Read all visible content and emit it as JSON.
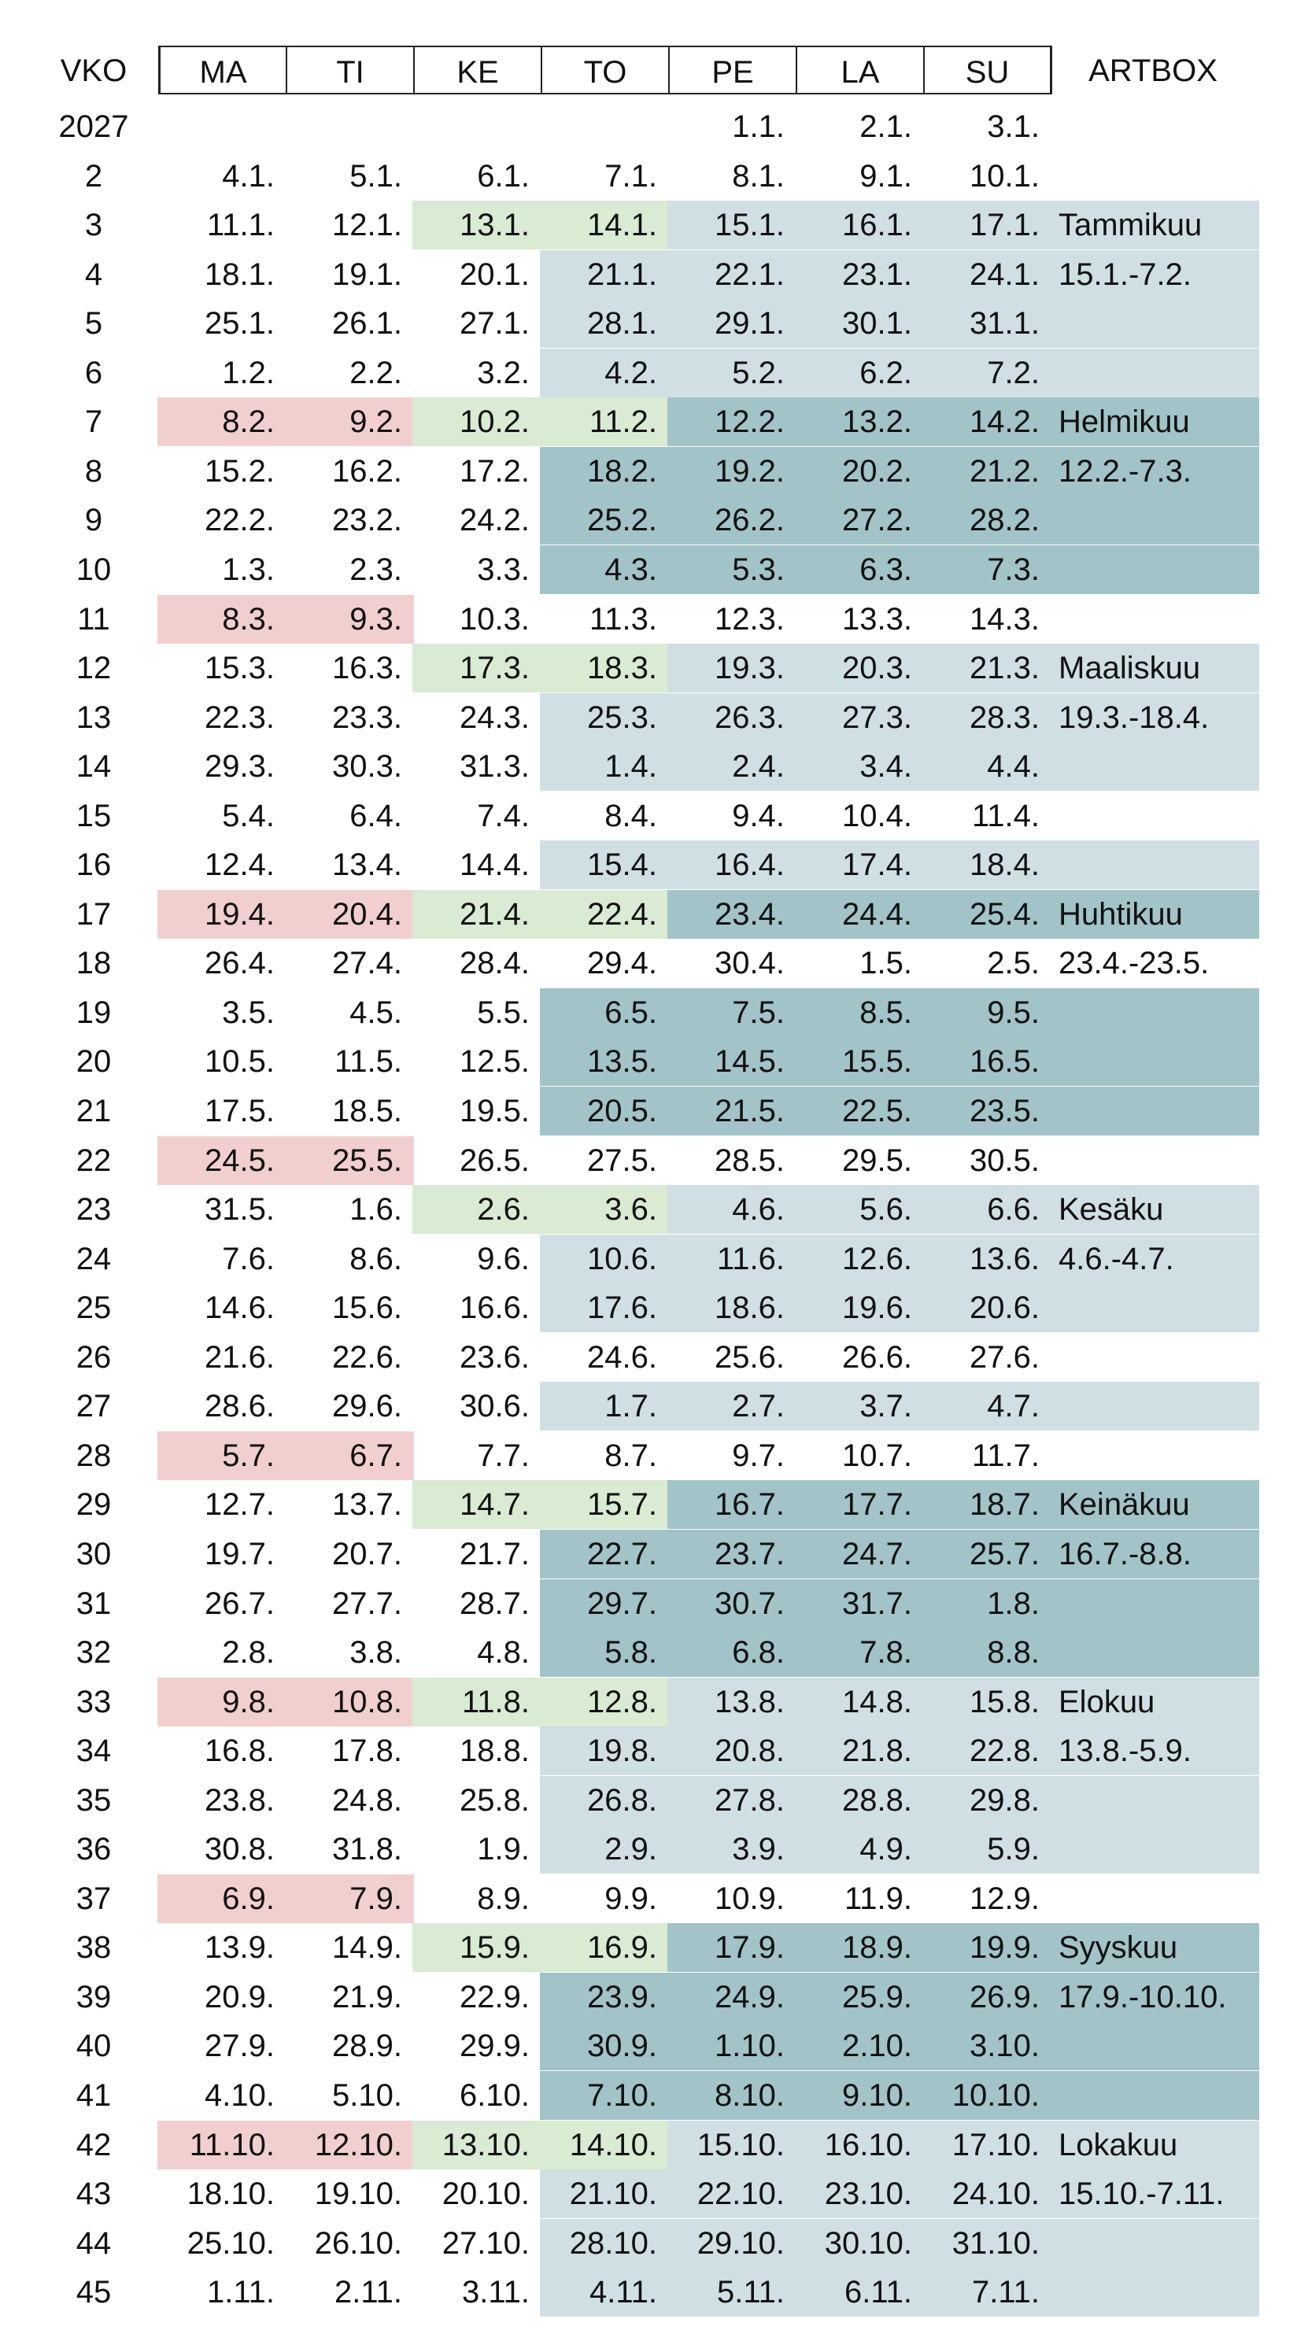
{
  "header": {
    "week_label": "VKO",
    "days": [
      "MA",
      "TI",
      "KE",
      "TO",
      "PE",
      "LA",
      "SU"
    ],
    "notes_label": "ARTBOX"
  },
  "colors": {
    "pink": "#f2cfcf",
    "green": "#d9ebd3",
    "light_blue": "#d0dfe3",
    "dark_blue": "#a2c3c8"
  },
  "rows": [
    {
      "week": "2027",
      "days": [
        "",
        "",
        "",
        "",
        "1.1.",
        "2.1.",
        "3.1."
      ],
      "note": "",
      "colors": [
        "",
        "",
        "",
        "",
        "",
        "",
        ""
      ],
      "note_color": ""
    },
    {
      "week": "2",
      "days": [
        "4.1.",
        "5.1.",
        "6.1.",
        "7.1.",
        "8.1.",
        "9.1.",
        "10.1."
      ],
      "note": "",
      "colors": [
        "",
        "",
        "",
        "",
        "",
        "",
        ""
      ],
      "note_color": ""
    },
    {
      "week": "3",
      "days": [
        "11.1.",
        "12.1.",
        "13.1.",
        "14.1.",
        "15.1.",
        "16.1.",
        "17.1."
      ],
      "note": "Tammikuu",
      "colors": [
        "",
        "",
        "green",
        "green",
        "light_blue",
        "light_blue",
        "light_blue"
      ],
      "note_color": "light_blue"
    },
    {
      "week": "4",
      "days": [
        "18.1.",
        "19.1.",
        "20.1.",
        "21.1.",
        "22.1.",
        "23.1.",
        "24.1."
      ],
      "note": "15.1.-7.2.",
      "colors": [
        "",
        "",
        "",
        "light_blue",
        "light_blue",
        "light_blue",
        "light_blue"
      ],
      "note_color": "light_blue"
    },
    {
      "week": "5",
      "days": [
        "25.1.",
        "26.1.",
        "27.1.",
        "28.1.",
        "29.1.",
        "30.1.",
        "31.1."
      ],
      "note": "",
      "colors": [
        "",
        "",
        "",
        "light_blue",
        "light_blue",
        "light_blue",
        "light_blue"
      ],
      "note_color": "light_blue"
    },
    {
      "week": "6",
      "days": [
        "1.2.",
        "2.2.",
        "3.2.",
        "4.2.",
        "5.2.",
        "6.2.",
        "7.2."
      ],
      "note": "",
      "colors": [
        "",
        "",
        "",
        "light_blue",
        "light_blue",
        "light_blue",
        "light_blue"
      ],
      "note_color": "light_blue"
    },
    {
      "week": "7",
      "days": [
        "8.2.",
        "9.2.",
        "10.2.",
        "11.2.",
        "12.2.",
        "13.2.",
        "14.2."
      ],
      "note": "Helmikuu",
      "colors": [
        "pink",
        "pink",
        "green",
        "green",
        "dark_blue",
        "dark_blue",
        "dark_blue"
      ],
      "note_color": "dark_blue"
    },
    {
      "week": "8",
      "days": [
        "15.2.",
        "16.2.",
        "17.2.",
        "18.2.",
        "19.2.",
        "20.2.",
        "21.2."
      ],
      "note": "12.2.-7.3.",
      "colors": [
        "",
        "",
        "",
        "dark_blue",
        "dark_blue",
        "dark_blue",
        "dark_blue"
      ],
      "note_color": "dark_blue"
    },
    {
      "week": "9",
      "days": [
        "22.2.",
        "23.2.",
        "24.2.",
        "25.2.",
        "26.2.",
        "27.2.",
        "28.2."
      ],
      "note": "",
      "colors": [
        "",
        "",
        "",
        "dark_blue",
        "dark_blue",
        "dark_blue",
        "dark_blue"
      ],
      "note_color": "dark_blue"
    },
    {
      "week": "10",
      "days": [
        "1.3.",
        "2.3.",
        "3.3.",
        "4.3.",
        "5.3.",
        "6.3.",
        "7.3."
      ],
      "note": "",
      "colors": [
        "",
        "",
        "",
        "dark_blue",
        "dark_blue",
        "dark_blue",
        "dark_blue"
      ],
      "note_color": "dark_blue"
    },
    {
      "week": "11",
      "days": [
        "8.3.",
        "9.3.",
        "10.3.",
        "11.3.",
        "12.3.",
        "13.3.",
        "14.3."
      ],
      "note": "",
      "colors": [
        "pink",
        "pink",
        "",
        "",
        "",
        "",
        ""
      ],
      "note_color": ""
    },
    {
      "week": "12",
      "days": [
        "15.3.",
        "16.3.",
        "17.3.",
        "18.3.",
        "19.3.",
        "20.3.",
        "21.3."
      ],
      "note": "Maaliskuu",
      "colors": [
        "",
        "",
        "green",
        "green",
        "light_blue",
        "light_blue",
        "light_blue"
      ],
      "note_color": "light_blue"
    },
    {
      "week": "13",
      "days": [
        "22.3.",
        "23.3.",
        "24.3.",
        "25.3.",
        "26.3.",
        "27.3.",
        "28.3."
      ],
      "note": "19.3.-18.4.",
      "colors": [
        "",
        "",
        "",
        "light_blue",
        "light_blue",
        "light_blue",
        "light_blue"
      ],
      "note_color": "light_blue"
    },
    {
      "week": "14",
      "days": [
        "29.3.",
        "30.3.",
        "31.3.",
        "1.4.",
        "2.4.",
        "3.4.",
        "4.4."
      ],
      "note": "",
      "colors": [
        "",
        "",
        "",
        "light_blue",
        "light_blue",
        "light_blue",
        "light_blue"
      ],
      "note_color": "light_blue"
    },
    {
      "week": "15",
      "days": [
        "5.4.",
        "6.4.",
        "7.4.",
        "8.4.",
        "9.4.",
        "10.4.",
        "11.4."
      ],
      "note": "",
      "colors": [
        "",
        "",
        "",
        "",
        "",
        "",
        ""
      ],
      "note_color": ""
    },
    {
      "week": "16",
      "days": [
        "12.4.",
        "13.4.",
        "14.4.",
        "15.4.",
        "16.4.",
        "17.4.",
        "18.4."
      ],
      "note": "",
      "colors": [
        "",
        "",
        "",
        "light_blue",
        "light_blue",
        "light_blue",
        "light_blue"
      ],
      "note_color": "light_blue"
    },
    {
      "week": "17",
      "days": [
        "19.4.",
        "20.4.",
        "21.4.",
        "22.4.",
        "23.4.",
        "24.4.",
        "25.4."
      ],
      "note": "Huhtikuu",
      "colors": [
        "pink",
        "pink",
        "green",
        "green",
        "dark_blue",
        "dark_blue",
        "dark_blue"
      ],
      "note_color": "dark_blue"
    },
    {
      "week": "18",
      "days": [
        "26.4.",
        "27.4.",
        "28.4.",
        "29.4.",
        "30.4.",
        "1.5.",
        "2.5."
      ],
      "note": "23.4.-23.5.",
      "colors": [
        "",
        "",
        "",
        "",
        "",
        "",
        ""
      ],
      "note_color": ""
    },
    {
      "week": "19",
      "days": [
        "3.5.",
        "4.5.",
        "5.5.",
        "6.5.",
        "7.5.",
        "8.5.",
        "9.5."
      ],
      "note": "",
      "colors": [
        "",
        "",
        "",
        "dark_blue",
        "dark_blue",
        "dark_blue",
        "dark_blue"
      ],
      "note_color": "dark_blue"
    },
    {
      "week": "20",
      "days": [
        "10.5.",
        "11.5.",
        "12.5.",
        "13.5.",
        "14.5.",
        "15.5.",
        "16.5."
      ],
      "note": "",
      "colors": [
        "",
        "",
        "",
        "dark_blue",
        "dark_blue",
        "dark_blue",
        "dark_blue"
      ],
      "note_color": "dark_blue"
    },
    {
      "week": "21",
      "days": [
        "17.5.",
        "18.5.",
        "19.5.",
        "20.5.",
        "21.5.",
        "22.5.",
        "23.5."
      ],
      "note": "",
      "colors": [
        "",
        "",
        "",
        "dark_blue",
        "dark_blue",
        "dark_blue",
        "dark_blue"
      ],
      "note_color": "dark_blue"
    },
    {
      "week": "22",
      "days": [
        "24.5.",
        "25.5.",
        "26.5.",
        "27.5.",
        "28.5.",
        "29.5.",
        "30.5."
      ],
      "note": "",
      "colors": [
        "pink",
        "pink",
        "",
        "",
        "",
        "",
        ""
      ],
      "note_color": ""
    },
    {
      "week": "23",
      "days": [
        "31.5.",
        "1.6.",
        "2.6.",
        "3.6.",
        "4.6.",
        "5.6.",
        "6.6."
      ],
      "note": "Kesäku",
      "colors": [
        "",
        "",
        "green",
        "green",
        "light_blue",
        "light_blue",
        "light_blue"
      ],
      "note_color": "light_blue"
    },
    {
      "week": "24",
      "days": [
        "7.6.",
        "8.6.",
        "9.6.",
        "10.6.",
        "11.6.",
        "12.6.",
        "13.6."
      ],
      "note": "4.6.-4.7.",
      "colors": [
        "",
        "",
        "",
        "light_blue",
        "light_blue",
        "light_blue",
        "light_blue"
      ],
      "note_color": "light_blue"
    },
    {
      "week": "25",
      "days": [
        "14.6.",
        "15.6.",
        "16.6.",
        "17.6.",
        "18.6.",
        "19.6.",
        "20.6."
      ],
      "note": "",
      "colors": [
        "",
        "",
        "",
        "light_blue",
        "light_blue",
        "light_blue",
        "light_blue"
      ],
      "note_color": "light_blue"
    },
    {
      "week": "26",
      "days": [
        "21.6.",
        "22.6.",
        "23.6.",
        "24.6.",
        "25.6.",
        "26.6.",
        "27.6."
      ],
      "note": "",
      "colors": [
        "",
        "",
        "",
        "",
        "",
        "",
        ""
      ],
      "note_color": ""
    },
    {
      "week": "27",
      "days": [
        "28.6.",
        "29.6.",
        "30.6.",
        "1.7.",
        "2.7.",
        "3.7.",
        "4.7."
      ],
      "note": "",
      "colors": [
        "",
        "",
        "",
        "light_blue",
        "light_blue",
        "light_blue",
        "light_blue"
      ],
      "note_color": "light_blue"
    },
    {
      "week": "28",
      "days": [
        "5.7.",
        "6.7.",
        "7.7.",
        "8.7.",
        "9.7.",
        "10.7.",
        "11.7."
      ],
      "note": "",
      "colors": [
        "pink",
        "pink",
        "",
        "",
        "",
        "",
        ""
      ],
      "note_color": ""
    },
    {
      "week": "29",
      "days": [
        "12.7.",
        "13.7.",
        "14.7.",
        "15.7.",
        "16.7.",
        "17.7.",
        "18.7."
      ],
      "note": "Keinäkuu",
      "colors": [
        "",
        "",
        "green",
        "green",
        "dark_blue",
        "dark_blue",
        "dark_blue"
      ],
      "note_color": "dark_blue"
    },
    {
      "week": "30",
      "days": [
        "19.7.",
        "20.7.",
        "21.7.",
        "22.7.",
        "23.7.",
        "24.7.",
        "25.7."
      ],
      "note": "16.7.-8.8.",
      "colors": [
        "",
        "",
        "",
        "dark_blue",
        "dark_blue",
        "dark_blue",
        "dark_blue"
      ],
      "note_color": "dark_blue"
    },
    {
      "week": "31",
      "days": [
        "26.7.",
        "27.7.",
        "28.7.",
        "29.7.",
        "30.7.",
        "31.7.",
        "1.8."
      ],
      "note": "",
      "colors": [
        "",
        "",
        "",
        "dark_blue",
        "dark_blue",
        "dark_blue",
        "dark_blue"
      ],
      "note_color": "dark_blue"
    },
    {
      "week": "32",
      "days": [
        "2.8.",
        "3.8.",
        "4.8.",
        "5.8.",
        "6.8.",
        "7.8.",
        "8.8."
      ],
      "note": "",
      "colors": [
        "",
        "",
        "",
        "dark_blue",
        "dark_blue",
        "dark_blue",
        "dark_blue"
      ],
      "note_color": "dark_blue"
    },
    {
      "week": "33",
      "days": [
        "9.8.",
        "10.8.",
        "11.8.",
        "12.8.",
        "13.8.",
        "14.8.",
        "15.8."
      ],
      "note": "Elokuu",
      "colors": [
        "pink",
        "pink",
        "green",
        "green",
        "light_blue",
        "light_blue",
        "light_blue"
      ],
      "note_color": "light_blue"
    },
    {
      "week": "34",
      "days": [
        "16.8.",
        "17.8.",
        "18.8.",
        "19.8.",
        "20.8.",
        "21.8.",
        "22.8."
      ],
      "note": "13.8.-5.9.",
      "colors": [
        "",
        "",
        "",
        "light_blue",
        "light_blue",
        "light_blue",
        "light_blue"
      ],
      "note_color": "light_blue"
    },
    {
      "week": "35",
      "days": [
        "23.8.",
        "24.8.",
        "25.8.",
        "26.8.",
        "27.8.",
        "28.8.",
        "29.8."
      ],
      "note": "",
      "colors": [
        "",
        "",
        "",
        "light_blue",
        "light_blue",
        "light_blue",
        "light_blue"
      ],
      "note_color": "light_blue"
    },
    {
      "week": "36",
      "days": [
        "30.8.",
        "31.8.",
        "1.9.",
        "2.9.",
        "3.9.",
        "4.9.",
        "5.9."
      ],
      "note": "",
      "colors": [
        "",
        "",
        "",
        "light_blue",
        "light_blue",
        "light_blue",
        "light_blue"
      ],
      "note_color": "light_blue"
    },
    {
      "week": "37",
      "days": [
        "6.9.",
        "7.9.",
        "8.9.",
        "9.9.",
        "10.9.",
        "11.9.",
        "12.9."
      ],
      "note": "",
      "colors": [
        "pink",
        "pink",
        "",
        "",
        "",
        "",
        ""
      ],
      "note_color": ""
    },
    {
      "week": "38",
      "days": [
        "13.9.",
        "14.9.",
        "15.9.",
        "16.9.",
        "17.9.",
        "18.9.",
        "19.9."
      ],
      "note": "Syyskuu",
      "colors": [
        "",
        "",
        "green",
        "green",
        "dark_blue",
        "dark_blue",
        "dark_blue"
      ],
      "note_color": "dark_blue"
    },
    {
      "week": "39",
      "days": [
        "20.9.",
        "21.9.",
        "22.9.",
        "23.9.",
        "24.9.",
        "25.9.",
        "26.9."
      ],
      "note": "17.9.-10.10.",
      "colors": [
        "",
        "",
        "",
        "dark_blue",
        "dark_blue",
        "dark_blue",
        "dark_blue"
      ],
      "note_color": "dark_blue"
    },
    {
      "week": "40",
      "days": [
        "27.9.",
        "28.9.",
        "29.9.",
        "30.9.",
        "1.10.",
        "2.10.",
        "3.10."
      ],
      "note": "",
      "colors": [
        "",
        "",
        "",
        "dark_blue",
        "dark_blue",
        "dark_blue",
        "dark_blue"
      ],
      "note_color": "dark_blue"
    },
    {
      "week": "41",
      "days": [
        "4.10.",
        "5.10.",
        "6.10.",
        "7.10.",
        "8.10.",
        "9.10.",
        "10.10."
      ],
      "note": "",
      "colors": [
        "",
        "",
        "",
        "dark_blue",
        "dark_blue",
        "dark_blue",
        "dark_blue"
      ],
      "note_color": "dark_blue"
    },
    {
      "week": "42",
      "days": [
        "11.10.",
        "12.10.",
        "13.10.",
        "14.10.",
        "15.10.",
        "16.10.",
        "17.10."
      ],
      "note": "Lokakuu",
      "colors": [
        "pink",
        "pink",
        "green",
        "green",
        "light_blue",
        "light_blue",
        "light_blue"
      ],
      "note_color": "light_blue"
    },
    {
      "week": "43",
      "days": [
        "18.10.",
        "19.10.",
        "20.10.",
        "21.10.",
        "22.10.",
        "23.10.",
        "24.10."
      ],
      "note": "15.10.-7.11.",
      "colors": [
        "",
        "",
        "",
        "light_blue",
        "light_blue",
        "light_blue",
        "light_blue"
      ],
      "note_color": "light_blue"
    },
    {
      "week": "44",
      "days": [
        "25.10.",
        "26.10.",
        "27.10.",
        "28.10.",
        "29.10.",
        "30.10.",
        "31.10."
      ],
      "note": "",
      "colors": [
        "",
        "",
        "",
        "light_blue",
        "light_blue",
        "light_blue",
        "light_blue"
      ],
      "note_color": "light_blue"
    },
    {
      "week": "45",
      "days": [
        "1.11.",
        "2.11.",
        "3.11.",
        "4.11.",
        "5.11.",
        "6.11.",
        "7.11."
      ],
      "note": "",
      "colors": [
        "",
        "",
        "",
        "light_blue",
        "light_blue",
        "light_blue",
        "light_blue"
      ],
      "note_color": "light_blue"
    }
  ]
}
